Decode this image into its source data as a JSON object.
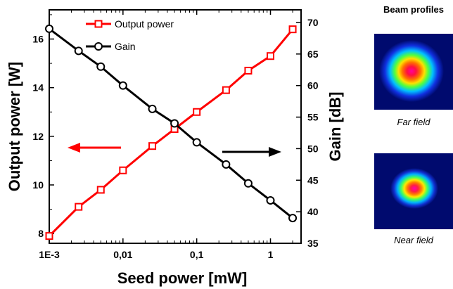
{
  "chart_data": {
    "type": "line",
    "xlabel": "Seed power [mW]",
    "ylabel_left": "Output power [W]",
    "ylabel_right": "Gain [dB]",
    "x_scale": "log",
    "xlim": [
      0.001,
      2.6
    ],
    "ylim_left": [
      7.6,
      17.2
    ],
    "ylim_right": [
      35,
      72
    ],
    "x_ticks": [
      {
        "value": 0.001,
        "label": "1E-3"
      },
      {
        "value": 0.01,
        "label": "0,01"
      },
      {
        "value": 0.1,
        "label": "0,1"
      },
      {
        "value": 1,
        "label": "1"
      }
    ],
    "y_ticks_left": [
      {
        "value": 8,
        "label": "8"
      },
      {
        "value": 10,
        "label": "10"
      },
      {
        "value": 12,
        "label": "12"
      },
      {
        "value": 14,
        "label": "14"
      },
      {
        "value": 16,
        "label": "16"
      }
    ],
    "y_ticks_right": [
      {
        "value": 35,
        "label": "35"
      },
      {
        "value": 40,
        "label": "40"
      },
      {
        "value": 45,
        "label": "45"
      },
      {
        "value": 50,
        "label": "50"
      },
      {
        "value": 55,
        "label": "55"
      },
      {
        "value": 60,
        "label": "60"
      },
      {
        "value": 65,
        "label": "65"
      },
      {
        "value": 70,
        "label": "70"
      }
    ],
    "series": [
      {
        "name": "Output power",
        "axis": "left",
        "color": "#ff0000",
        "marker": "square",
        "x": [
          0.001,
          0.0025,
          0.005,
          0.01,
          0.025,
          0.05,
          0.1,
          0.25,
          0.5,
          1,
          2
        ],
        "values": [
          7.9,
          9.1,
          9.8,
          10.6,
          11.6,
          12.3,
          13.0,
          13.9,
          14.7,
          15.3,
          16.4
        ]
      },
      {
        "name": "Gain",
        "axis": "right",
        "color": "#000000",
        "marker": "circle",
        "x": [
          0.001,
          0.0025,
          0.005,
          0.01,
          0.025,
          0.05,
          0.1,
          0.25,
          0.5,
          1,
          2
        ],
        "values": [
          69.0,
          65.5,
          63.0,
          60.0,
          56.3,
          54.0,
          51.0,
          47.5,
          44.5,
          41.8,
          39.0
        ]
      }
    ],
    "legend_position": "top-center",
    "annotations": {
      "left_arrow_color": "#ff0000",
      "right_arrow_color": "#000000"
    }
  },
  "beam_panel": {
    "title": "Beam profiles",
    "far_caption": "Far field",
    "near_caption": "Near field"
  }
}
